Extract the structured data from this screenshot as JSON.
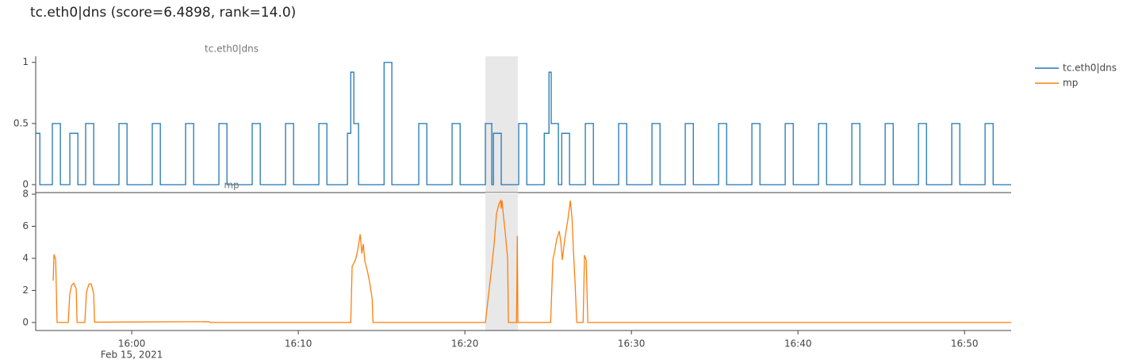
{
  "title": "tc.eth0|dns (score=6.4898, rank=14.0)",
  "legend": "right",
  "chart_data": [
    {
      "type": "line",
      "line_shape": "hv",
      "title": "tc.eth0|dns",
      "xlim": [
        "2021-02-15 15:54:14",
        "2021-02-15 16:52:48"
      ],
      "ylim": [
        -0.065,
        1.05
      ],
      "yticks": [
        0,
        0.5,
        1
      ],
      "highlight": [
        "2021-02-15 16:21:14",
        "2021-02-15 16:23:11"
      ],
      "x": [
        "2021-02-15 15:54:14",
        "2021-02-15 15:54:29",
        "2021-02-15 15:55:14",
        "2021-02-15 15:55:43",
        "2021-02-15 15:56:17",
        "2021-02-15 15:56:46",
        "2021-02-15 15:57:14",
        "2021-02-15 15:57:43",
        "2021-02-15 15:59:14",
        "2021-02-15 15:59:43",
        "2021-02-15 16:01:14",
        "2021-02-15 16:01:43",
        "2021-02-15 16:03:14",
        "2021-02-15 16:03:43",
        "2021-02-15 16:05:14",
        "2021-02-15 16:05:43",
        "2021-02-15 16:07:14",
        "2021-02-15 16:07:43",
        "2021-02-15 16:09:14",
        "2021-02-15 16:09:43",
        "2021-02-15 16:11:14",
        "2021-02-15 16:11:43",
        "2021-02-15 16:12:57",
        "2021-02-15 16:13:09",
        "2021-02-15 16:13:20",
        "2021-02-15 16:13:37",
        "2021-02-15 16:15:09",
        "2021-02-15 16:15:37",
        "2021-02-15 16:17:14",
        "2021-02-15 16:17:43",
        "2021-02-15 16:19:14",
        "2021-02-15 16:19:43",
        "2021-02-15 16:21:14",
        "2021-02-15 16:21:37",
        "2021-02-15 16:21:43",
        "2021-02-15 16:22:11",
        "2021-02-15 16:23:14",
        "2021-02-15 16:23:43",
        "2021-02-15 16:24:46",
        "2021-02-15 16:25:03",
        "2021-02-15 16:25:11",
        "2021-02-15 16:25:37",
        "2021-02-15 16:25:49",
        "2021-02-15 16:26:17",
        "2021-02-15 16:27:14",
        "2021-02-15 16:27:43",
        "2021-02-15 16:29:14",
        "2021-02-15 16:29:43",
        "2021-02-15 16:31:14",
        "2021-02-15 16:31:43",
        "2021-02-15 16:33:14",
        "2021-02-15 16:33:43",
        "2021-02-15 16:35:14",
        "2021-02-15 16:35:43",
        "2021-02-15 16:37:14",
        "2021-02-15 16:37:43",
        "2021-02-15 16:39:14",
        "2021-02-15 16:39:43",
        "2021-02-15 16:41:14",
        "2021-02-15 16:41:43",
        "2021-02-15 16:43:14",
        "2021-02-15 16:43:43",
        "2021-02-15 16:45:14",
        "2021-02-15 16:45:43",
        "2021-02-15 16:47:14",
        "2021-02-15 16:47:43",
        "2021-02-15 16:49:14",
        "2021-02-15 16:49:43",
        "2021-02-15 16:51:14",
        "2021-02-15 16:51:43",
        "2021-02-15 16:52:48"
      ],
      "series": [
        {
          "name": "tc.eth0|dns",
          "color": "#1f77b4",
          "values": [
            0.42,
            0,
            0.5,
            0,
            0.42,
            0,
            0.5,
            0,
            0.5,
            0,
            0.5,
            0,
            0.5,
            0,
            0.5,
            0,
            0.5,
            0,
            0.5,
            0,
            0.5,
            0,
            0.42,
            0.92,
            0.5,
            0,
            1,
            0,
            0.5,
            0,
            0.5,
            0,
            0.5,
            0,
            0.42,
            0,
            0.5,
            0,
            0.42,
            0.92,
            0.5,
            0,
            0.42,
            0,
            0.5,
            0,
            0.5,
            0,
            0.5,
            0,
            0.5,
            0,
            0.5,
            0,
            0.5,
            0,
            0.5,
            0,
            0.5,
            0,
            0.5,
            0,
            0.5,
            0,
            0.5,
            0,
            0.5,
            0,
            0.5,
            0,
            0
          ]
        }
      ]
    },
    {
      "type": "line",
      "line_shape": "linear",
      "title": "mp",
      "xlim": [
        "2021-02-15 15:54:14",
        "2021-02-15 16:52:48"
      ],
      "ylim": [
        -0.5,
        8.1
      ],
      "yticks": [
        0,
        2,
        4,
        6,
        8
      ],
      "highlight": [
        "2021-02-15 16:21:14",
        "2021-02-15 16:23:11"
      ],
      "xticks": [
        {
          "value": "2021-02-15 16:00:00",
          "label": "16:00"
        },
        {
          "value": "2021-02-15 16:10:00",
          "label": "16:10"
        },
        {
          "value": "2021-02-15 16:20:00",
          "label": "16:20"
        },
        {
          "value": "2021-02-15 16:30:00",
          "label": "16:30"
        },
        {
          "value": "2021-02-15 16:40:00",
          "label": "16:40"
        },
        {
          "value": "2021-02-15 16:50:00",
          "label": "16:50"
        }
      ],
      "x_date_label": "Feb 15, 2021",
      "x": [
        "2021-02-15 15:55:17",
        "2021-02-15 15:55:20",
        "2021-02-15 15:55:26",
        "2021-02-15 15:55:31",
        "2021-02-15 15:56:11",
        "2021-02-15 15:56:17",
        "2021-02-15 15:56:23",
        "2021-02-15 15:56:31",
        "2021-02-15 15:56:40",
        "2021-02-15 15:56:43",
        "2021-02-15 15:57:11",
        "2021-02-15 15:57:17",
        "2021-02-15 15:57:26",
        "2021-02-15 15:57:34",
        "2021-02-15 15:57:43",
        "2021-02-15 15:57:46",
        "2021-02-15 16:04:40",
        "2021-02-15 16:04:43",
        "2021-02-15 16:13:09",
        "2021-02-15 16:13:14",
        "2021-02-15 16:13:20",
        "2021-02-15 16:13:26",
        "2021-02-15 16:13:34",
        "2021-02-15 16:13:43",
        "2021-02-15 16:13:49",
        "2021-02-15 16:13:54",
        "2021-02-15 16:14:00",
        "2021-02-15 16:14:09",
        "2021-02-15 16:14:17",
        "2021-02-15 16:14:26",
        "2021-02-15 16:14:29",
        "2021-02-15 16:21:14",
        "2021-02-15 16:21:37",
        "2021-02-15 16:21:46",
        "2021-02-15 16:21:54",
        "2021-02-15 16:22:03",
        "2021-02-15 16:22:09",
        "2021-02-15 16:22:11",
        "2021-02-15 16:22:14",
        "2021-02-15 16:22:17",
        "2021-02-15 16:22:26",
        "2021-02-15 16:22:34",
        "2021-02-15 16:22:37",
        "2021-02-15 16:23:06",
        "2021-02-15 16:23:09",
        "2021-02-15 16:23:11",
        "2021-02-15 16:25:09",
        "2021-02-15 16:25:17",
        "2021-02-15 16:25:23",
        "2021-02-15 16:25:31",
        "2021-02-15 16:25:40",
        "2021-02-15 16:25:46",
        "2021-02-15 16:25:51",
        "2021-02-15 16:26:00",
        "2021-02-15 16:26:11",
        "2021-02-15 16:26:20",
        "2021-02-15 16:26:26",
        "2021-02-15 16:26:31",
        "2021-02-15 16:26:37",
        "2021-02-15 16:26:43",
        "2021-02-15 16:27:06",
        "2021-02-15 16:27:11",
        "2021-02-15 16:27:17",
        "2021-02-15 16:27:23",
        "2021-02-15 16:52:48"
      ],
      "series": [
        {
          "name": "mp",
          "color": "#ff7f0e",
          "values": [
            2.6,
            4.25,
            3.9,
            0,
            0,
            1.8,
            2.3,
            2.45,
            2.1,
            0,
            0,
            1.9,
            2.4,
            2.4,
            1.8,
            0.02,
            0.05,
            0,
            0,
            3.5,
            3.7,
            3.9,
            4.5,
            5.5,
            4.3,
            4.9,
            3.8,
            3.2,
            2.5,
            1.5,
            0,
            0,
            3.5,
            5,
            6.8,
            7.4,
            7.6,
            7.1,
            7.6,
            7,
            5.5,
            4,
            0,
            0,
            5.4,
            0,
            0,
            3.9,
            4.4,
            5.2,
            5.7,
            5,
            3.9,
            5.2,
            6.4,
            7.6,
            6.5,
            4.5,
            2.5,
            0,
            0,
            4.2,
            3.9,
            0,
            0
          ]
        }
      ]
    }
  ]
}
